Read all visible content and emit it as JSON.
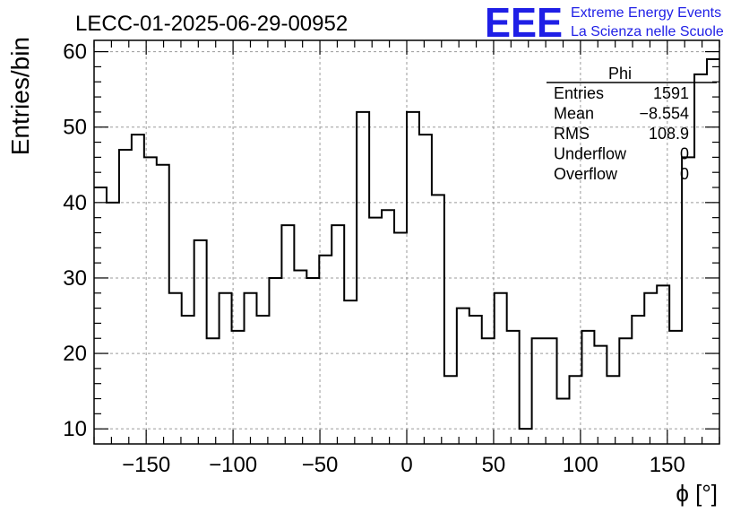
{
  "title": "LECC-01-2025-06-29-00952",
  "logo": {
    "letters": "EEE",
    "line1": "Extreme Energy Events",
    "line2": "La Scienza nelle Scuole",
    "color": "#1f1fe6"
  },
  "stats": {
    "name": "Phi",
    "rows": [
      {
        "label": "Entries",
        "value": "1591"
      },
      {
        "label": "Mean",
        "value": "−8.554"
      },
      {
        "label": "RMS",
        "value": "108.9"
      },
      {
        "label": "Underflow",
        "value": "0"
      },
      {
        "label": "Overflow",
        "value": "0"
      }
    ]
  },
  "chart_data": {
    "type": "histogram",
    "title": "LECC-01-2025-06-29-00952",
    "xlabel": "ϕ [°]",
    "ylabel": "Entries/bin",
    "xlim": [
      -180,
      180
    ],
    "ylim": [
      8,
      61.5
    ],
    "grid": true,
    "legend": "top-right",
    "x_ticks": [
      -150,
      -100,
      -50,
      0,
      50,
      100,
      150
    ],
    "x_tick_labels": [
      "−150",
      "−100",
      "−50",
      "0",
      "50",
      "100",
      "150"
    ],
    "y_ticks": [
      10,
      20,
      30,
      40,
      50,
      60
    ],
    "y_tick_labels": [
      "10",
      "20",
      "30",
      "40",
      "50",
      "60"
    ],
    "bin_edges": [
      -180,
      -172.8,
      -165.6,
      -158.4,
      -151.2,
      -144,
      -136.8,
      -129.6,
      -122.4,
      -115.2,
      -108,
      -100.8,
      -93.6,
      -86.4,
      -79.2,
      -72,
      -64.8,
      -57.6,
      -50.4,
      -43.2,
      -36,
      -28.8,
      -21.6,
      -14.4,
      -7.2,
      0,
      7.2,
      14.4,
      21.6,
      28.8,
      36,
      43.2,
      50.4,
      57.6,
      64.8,
      72,
      79.2,
      86.4,
      93.6,
      100.8,
      108,
      115.2,
      122.4,
      129.6,
      136.8,
      144,
      151.2,
      158.4,
      165.6,
      172.8,
      180
    ],
    "values": [
      42,
      40,
      47,
      49,
      46,
      45,
      28,
      25,
      35,
      22,
      28,
      23,
      28,
      25,
      30,
      37,
      31,
      30,
      33,
      37,
      27,
      52,
      38,
      39,
      36,
      52,
      49,
      41,
      17,
      26,
      25,
      22,
      28,
      23,
      10,
      22,
      22,
      14,
      17,
      23,
      21,
      17,
      22,
      25,
      28,
      29,
      23,
      46,
      57,
      59
    ]
  }
}
